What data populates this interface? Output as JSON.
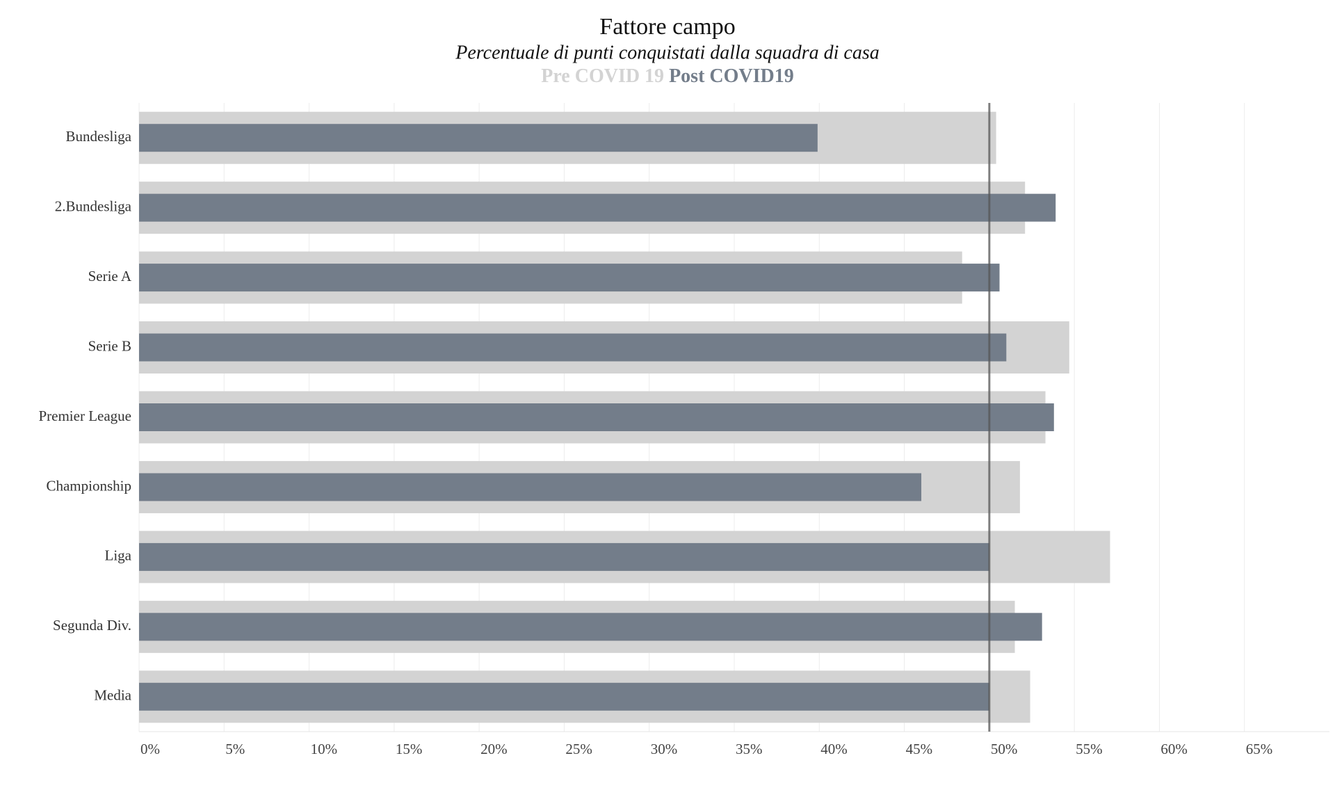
{
  "chart_data": {
    "type": "bar",
    "orientation": "horizontal",
    "title": "Fattore campo",
    "subtitle": "Percentuale di punti conquistati dalla squadra di casa",
    "categories": [
      "Bundesliga",
      "2.Bundesliga",
      "Serie A",
      "Serie B",
      "Premier League",
      "Championship",
      "Liga",
      "Segunda Div.",
      "Media"
    ],
    "series": [
      {
        "name": "Pre COVID 19",
        "color": "#d3d3d3",
        "values": [
          50.4,
          52.1,
          48.4,
          54.7,
          53.3,
          51.8,
          57.1,
          51.5,
          52.4
        ]
      },
      {
        "name": "Post COVID19",
        "color": "#737d8a",
        "values": [
          39.9,
          53.9,
          50.6,
          51.0,
          53.8,
          46.0,
          50.0,
          53.1,
          50.0
        ]
      }
    ],
    "xlim": [
      0,
      70
    ],
    "xticks": [
      {
        "value": 0,
        "label": "0%"
      },
      {
        "value": 5,
        "label": "5%"
      },
      {
        "value": 10,
        "label": "10%"
      },
      {
        "value": 15,
        "label": "15%"
      },
      {
        "value": 20,
        "label": "20%"
      },
      {
        "value": 25,
        "label": "25%"
      },
      {
        "value": 30,
        "label": "30%"
      },
      {
        "value": 35,
        "label": "35%"
      },
      {
        "value": 40,
        "label": "40%"
      },
      {
        "value": 45,
        "label": "45%"
      },
      {
        "value": 50,
        "label": "50%"
      },
      {
        "value": 55,
        "label": "55%"
      },
      {
        "value": 60,
        "label": "60%"
      },
      {
        "value": 65,
        "label": "65%"
      }
    ],
    "reference_line": 50,
    "grid": true
  }
}
